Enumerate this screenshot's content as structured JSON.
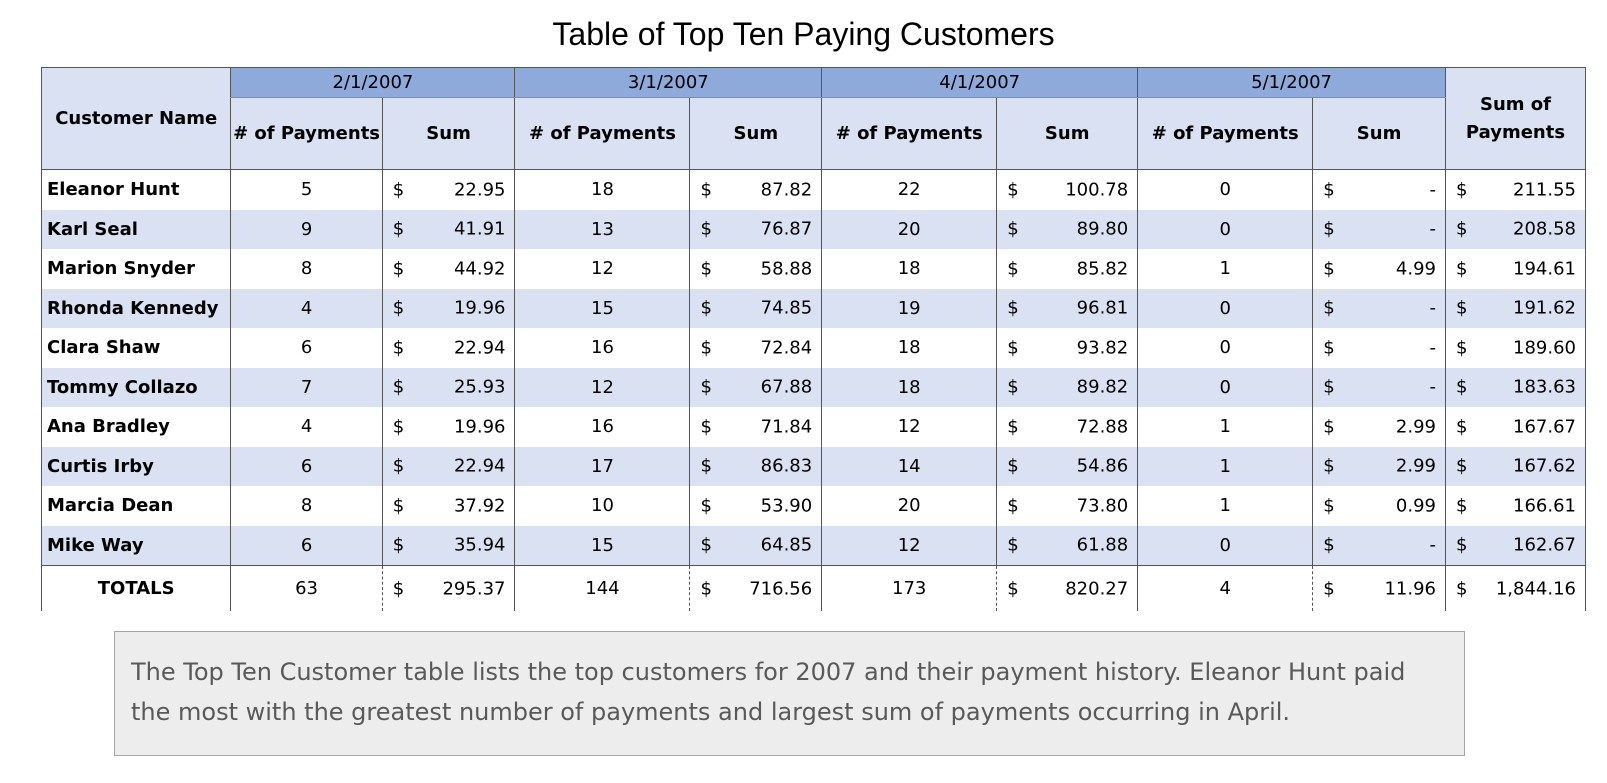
{
  "title": "Table of Top Ten Paying Customers",
  "headers": {
    "customer_name": "Customer Name",
    "dates": [
      "2/1/2007",
      "3/1/2007",
      "4/1/2007",
      "5/1/2007"
    ],
    "count_label": "# of Payments",
    "sum_label": "Sum",
    "total_label_line1": "Sum of",
    "total_label_line2": "Payments",
    "currency": "$"
  },
  "rows": [
    {
      "name": "Eleanor Hunt",
      "p1": "5",
      "s1": "22.95",
      "p2": "18",
      "s2": "87.82",
      "p3": "22",
      "s3": "100.78",
      "p4": "0",
      "s4": "-",
      "total": "211.55"
    },
    {
      "name": "Karl Seal",
      "p1": "9",
      "s1": "41.91",
      "p2": "13",
      "s2": "76.87",
      "p3": "20",
      "s3": "89.80",
      "p4": "0",
      "s4": "-",
      "total": "208.58"
    },
    {
      "name": "Marion Snyder",
      "p1": "8",
      "s1": "44.92",
      "p2": "12",
      "s2": "58.88",
      "p3": "18",
      "s3": "85.82",
      "p4": "1",
      "s4": "4.99",
      "total": "194.61"
    },
    {
      "name": "Rhonda Kennedy",
      "p1": "4",
      "s1": "19.96",
      "p2": "15",
      "s2": "74.85",
      "p3": "19",
      "s3": "96.81",
      "p4": "0",
      "s4": "-",
      "total": "191.62"
    },
    {
      "name": "Clara Shaw",
      "p1": "6",
      "s1": "22.94",
      "p2": "16",
      "s2": "72.84",
      "p3": "18",
      "s3": "93.82",
      "p4": "0",
      "s4": "-",
      "total": "189.60"
    },
    {
      "name": "Tommy Collazo",
      "p1": "7",
      "s1": "25.93",
      "p2": "12",
      "s2": "67.88",
      "p3": "18",
      "s3": "89.82",
      "p4": "0",
      "s4": "-",
      "total": "183.63"
    },
    {
      "name": "Ana Bradley",
      "p1": "4",
      "s1": "19.96",
      "p2": "16",
      "s2": "71.84",
      "p3": "12",
      "s3": "72.88",
      "p4": "1",
      "s4": "2.99",
      "total": "167.67"
    },
    {
      "name": "Curtis Irby",
      "p1": "6",
      "s1": "22.94",
      "p2": "17",
      "s2": "86.83",
      "p3": "14",
      "s3": "54.86",
      "p4": "1",
      "s4": "2.99",
      "total": "167.62"
    },
    {
      "name": "Marcia Dean",
      "p1": "8",
      "s1": "37.92",
      "p2": "10",
      "s2": "53.90",
      "p3": "20",
      "s3": "73.80",
      "p4": "1",
      "s4": "0.99",
      "total": "166.61"
    },
    {
      "name": "Mike Way",
      "p1": "6",
      "s1": "35.94",
      "p2": "15",
      "s2": "64.85",
      "p3": "12",
      "s3": "61.88",
      "p4": "0",
      "s4": "-",
      "total": "162.67"
    }
  ],
  "totals": {
    "label": "TOTALS",
    "p1": "63",
    "s1": "295.37",
    "p2": "144",
    "s2": "716.56",
    "p3": "173",
    "s3": "820.27",
    "p4": "4",
    "s4": "11.96",
    "total": "1,844.16"
  },
  "caption": "The Top Ten Customer table lists the top customers for 2007 and their payment history. Eleanor Hunt paid the most with the greatest number of payments and largest sum of payments occurring  in April.",
  "colors": {
    "date_header_bg": "#8eaadb",
    "band_bg": "#d9e1f2",
    "caption_bg": "#ededed",
    "caption_text": "#595959"
  }
}
